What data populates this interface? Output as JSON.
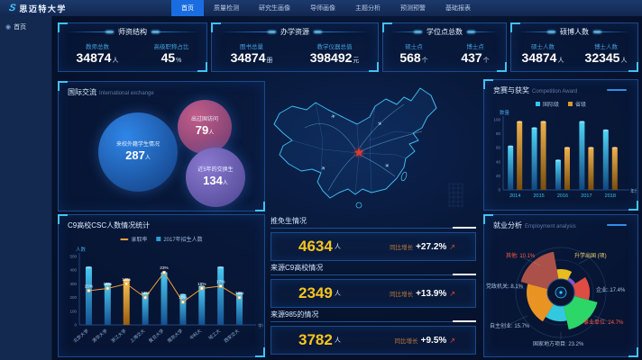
{
  "brand": {
    "logo_mark": "S",
    "logo_text": "思迈特大学"
  },
  "nav": {
    "items": [
      "首页",
      "质量检测",
      "研究生画像",
      "导师画像",
      "主题分析",
      "预测预警",
      "基础报表"
    ],
    "active": "首页"
  },
  "sidebar": {
    "home_label": "首页"
  },
  "icons": {
    "home": "◉",
    "growth_arrow": "↗",
    "plane": "✈",
    "star": "★"
  },
  "colors": {
    "accent_blue": "#1a6de0",
    "cyan": "#35c5f0",
    "yellow": "#f7c51e",
    "orange": "#f0a03c",
    "red": "#e84c3d"
  },
  "kpis": [
    {
      "title": "师资结构",
      "stats": [
        {
          "label": "教师总数",
          "value": "34874",
          "unit": "人"
        },
        {
          "label": "高级职称占比",
          "value": "45",
          "unit": "%"
        }
      ]
    },
    {
      "title": "办学资源",
      "stats": [
        {
          "label": "图书总量",
          "value": "34874",
          "unit": "册"
        },
        {
          "label": "教学仪器总值",
          "value": "398492",
          "unit": "元"
        }
      ]
    },
    {
      "title": "学位点总数",
      "stats": [
        {
          "label": "硕士点",
          "value": "568",
          "unit": "个"
        },
        {
          "label": "博士点",
          "value": "437",
          "unit": "个"
        }
      ]
    },
    {
      "title": "硕博人数",
      "stats": [
        {
          "label": "硕士人数",
          "value": "34874",
          "unit": "人"
        },
        {
          "label": "博士人数",
          "value": "32345",
          "unit": "人"
        }
      ]
    }
  ],
  "intl": {
    "title": "国际交流",
    "subtitle": "International exchange",
    "bubbles": [
      {
        "label": "来校外籍学生情况",
        "value": "287",
        "unit": "人",
        "color_from": "#2f86e8",
        "color_to": "#123c7e",
        "x": 88,
        "y": 78,
        "r": 44
      },
      {
        "label": "出过国访问",
        "value": "79",
        "unit": "人",
        "color_from": "#c25d8a",
        "color_to": "#6e3a6e",
        "x": 162,
        "y": 50,
        "r": 30
      },
      {
        "label": "近5年的交换生",
        "value": "134",
        "unit": "人",
        "color_from": "#8a7ad0",
        "color_to": "#4d4391",
        "x": 174,
        "y": 106,
        "r": 33
      }
    ]
  },
  "chart_data": [
    {
      "id": "c9",
      "type": "bar+line",
      "title": "C9高校CSC人数情况统计",
      "ylabel": "人数",
      "xlabel": "学校",
      "ylim": [
        0,
        500
      ],
      "yticks": [
        0,
        100,
        200,
        300,
        400,
        500
      ],
      "categories": [
        "北京大学",
        "清华大学",
        "浙江大学",
        "上海交大",
        "复旦大学",
        "南京大学",
        "中科大",
        "哈工大",
        "西安交大"
      ],
      "series": [
        {
          "name": "2017年招生人数",
          "type": "bar",
          "color": "#2e9bd6",
          "values": [
            420,
            300,
            330,
            230,
            380,
            220,
            280,
            420,
            230
          ]
        },
        {
          "name": "录取率",
          "type": "line",
          "color": "#f0a03c",
          "values_pct": [
            15,
            16,
            18,
            12,
            23,
            10,
            16,
            17,
            12
          ]
        }
      ],
      "highlight_index": 2,
      "highlight_color": "#f0a03c"
    },
    {
      "id": "competition",
      "type": "bar",
      "title": "竞赛与获奖",
      "subtitle": "Competition Award",
      "ylabel": "数量",
      "xlabel": "年份",
      "ylim": [
        0,
        100
      ],
      "yticks": [
        0,
        20,
        40,
        60,
        80,
        100
      ],
      "categories": [
        "2014",
        "2015",
        "2016",
        "2017",
        "2018"
      ],
      "series": [
        {
          "name": "国际级",
          "color": "#35c5f0",
          "values": [
            62,
            88,
            42,
            97,
            85
          ]
        },
        {
          "name": "省级",
          "color": "#d89a2e",
          "values": [
            97,
            97,
            60,
            60,
            60
          ]
        }
      ]
    },
    {
      "id": "employment",
      "type": "pie",
      "title": "就业分析",
      "subtitle": "Employment analysis",
      "slices": [
        {
          "label": "其他",
          "pct": 10.1,
          "color": "#b5544b"
        },
        {
          "label": "升学出国",
          "pct": null,
          "color": "#f5c51d"
        },
        {
          "label": "企业",
          "pct": 17.4,
          "color": "#8e5bd8"
        },
        {
          "label": "事业单位",
          "pct": 24.7,
          "color": "#ea4f45"
        },
        {
          "label": "国家地方项目",
          "pct": 23.2,
          "color": "#2ee06a"
        },
        {
          "label": "自主创业",
          "pct": 15.7,
          "color": "#35d2e8"
        },
        {
          "label": "党政机关",
          "pct": 8.1,
          "color": "#f59a23"
        }
      ],
      "callouts": [
        {
          "text": "其他: 10.1%",
          "color": "#ff5b4d"
        },
        {
          "text": "升学出国 (项)",
          "color": "#f5d76e"
        },
        {
          "text": "党政机关: 8.1%",
          "color": "#a8c0dd"
        },
        {
          "text": "企业: 17.4%",
          "color": "#a8c0dd"
        },
        {
          "text": "自主创业: 15.7%",
          "color": "#a8c0dd"
        },
        {
          "text": "事业单位: 24.7%",
          "color": "#ff5b4d"
        },
        {
          "text": "国家地方项目: 23.2%",
          "color": "#a8c0dd"
        }
      ]
    }
  ],
  "center_stats": [
    {
      "title": "推免生情况",
      "value": "4634",
      "unit": "人",
      "growth_label": "同比增长",
      "growth": "+27.2%"
    },
    {
      "title": "来源C9高校情况",
      "value": "2349",
      "unit": "人",
      "growth_label": "同比增长",
      "growth": "+13.9%"
    },
    {
      "title": "来源985的情况",
      "value": "3782",
      "unit": "人",
      "growth_label": "同比增长",
      "growth": "+9.5%"
    }
  ]
}
